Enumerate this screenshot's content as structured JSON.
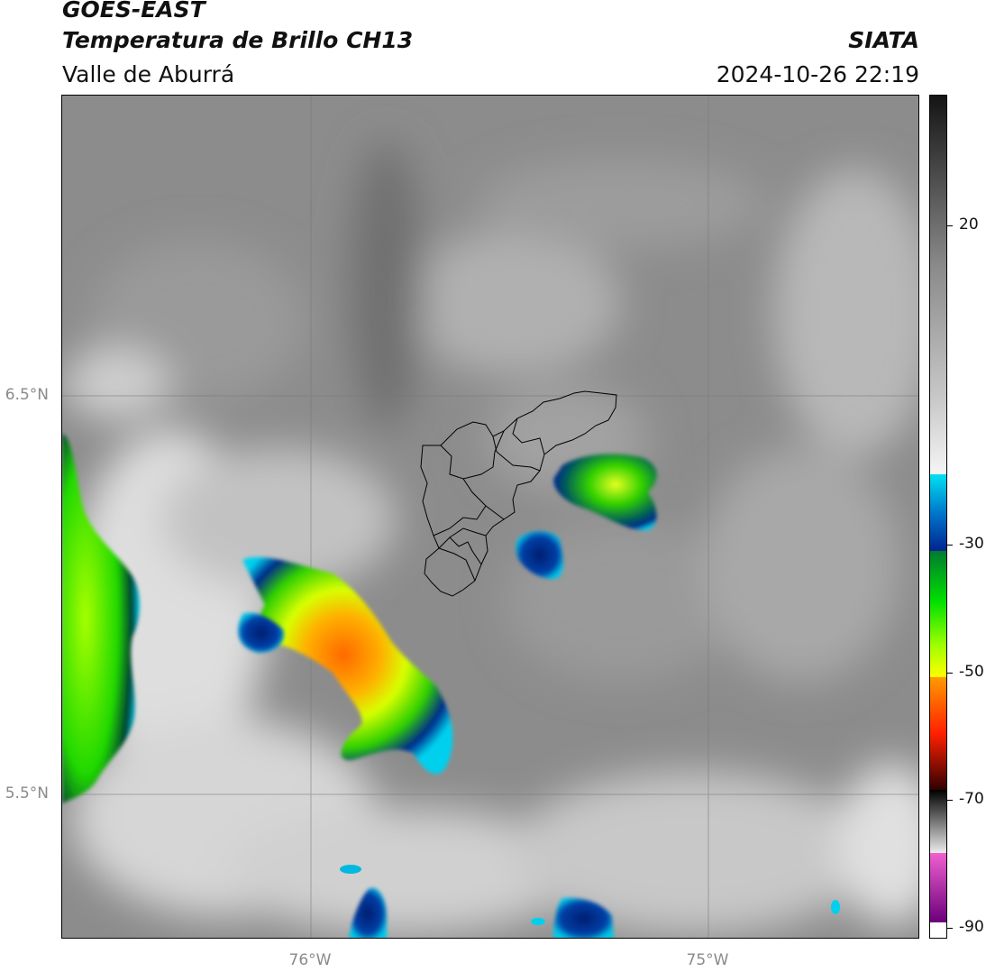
{
  "header": {
    "title": "GOES-EAST",
    "subtitle": "Temperatura de Brillo CH13",
    "organization": "SIATA",
    "region": "Valle de Aburrá",
    "timestamp": "2024-10-26 22:19"
  },
  "map": {
    "lat_labels": [
      "6.5°N",
      "5.5°N"
    ],
    "lon_labels": [
      "76°W",
      "75°W"
    ],
    "gridlines": true,
    "boundary_overlay": "Valle de Aburrá municipalities"
  },
  "colorbar": {
    "tick_labels": [
      "20",
      "-30",
      "-50",
      "-70",
      "-90"
    ],
    "segments_top_to_bottom": [
      {
        "name": "grayscale-warm",
        "colors": [
          "#141414",
          "#bdbdbd",
          "#f5f5f5"
        ]
      },
      {
        "name": "cyan-blue",
        "colors": [
          "#00e1f0",
          "#00238f"
        ]
      },
      {
        "name": "green-yellow",
        "colors": [
          "#007a30",
          "#00e000",
          "#a0ff00",
          "#ffff00"
        ]
      },
      {
        "name": "orange-red-dark",
        "colors": [
          "#ff9a00",
          "#ff2000",
          "#400000"
        ]
      },
      {
        "name": "grayscale-cold",
        "colors": [
          "#000000",
          "#e8e8e8"
        ]
      },
      {
        "name": "magenta-purple",
        "colors": [
          "#f060d0",
          "#6a007a"
        ]
      }
    ]
  }
}
